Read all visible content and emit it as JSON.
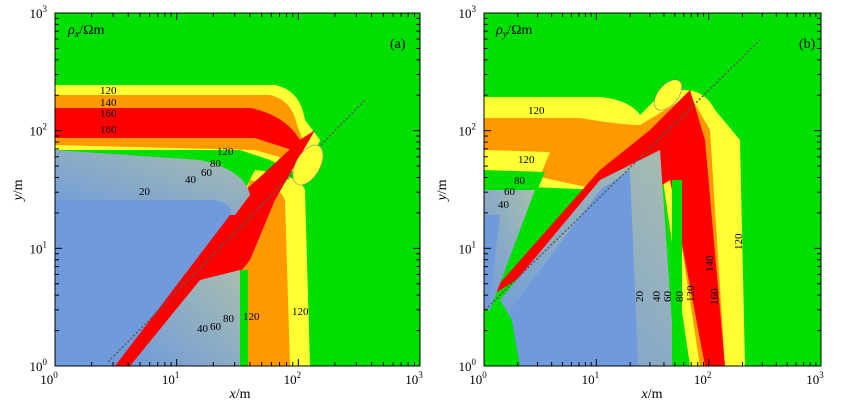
{
  "chart_data": [
    {
      "type": "heatmap",
      "panel_tag": "(a)",
      "field_label": {
        "sym": "ρ",
        "sub": "x",
        "unit": "/Ωm"
      },
      "xlabel": {
        "var": "x",
        "unit": "/m"
      },
      "ylabel": {
        "var": "y",
        "unit": "/m"
      },
      "x_scale": "log",
      "y_scale": "log",
      "xlim": [
        1,
        1000
      ],
      "ylim": [
        1,
        1000
      ],
      "x_ticks": [
        {
          "base": "10",
          "exp": "0"
        },
        {
          "base": "10",
          "exp": "1"
        },
        {
          "base": "10",
          "exp": "2"
        },
        {
          "base": "10",
          "exp": "3"
        }
      ],
      "y_ticks": [
        {
          "base": "10",
          "exp": "0"
        },
        {
          "base": "10",
          "exp": "1"
        },
        {
          "base": "10",
          "exp": "2"
        },
        {
          "base": "10",
          "exp": "3"
        }
      ],
      "contour_levels": [
        20,
        40,
        60,
        80,
        120,
        140,
        160
      ],
      "contour_labels": [
        "120",
        "140",
        "160",
        "160",
        "120",
        "80",
        "60",
        "40",
        "20",
        "40",
        "60",
        "80",
        "120",
        "120"
      ],
      "colors": {
        "background": "#00e000",
        "low": "#6f9bdc",
        "mid": "#9fb8b8",
        "yellow": "#ffff33",
        "orange": "#ff9900",
        "red": "#ff0000"
      }
    },
    {
      "type": "heatmap",
      "panel_tag": "(b)",
      "field_label": {
        "sym": "ρ",
        "sub": "y",
        "unit": "/Ωm"
      },
      "xlabel": {
        "var": "x",
        "unit": "/m"
      },
      "ylabel": {
        "var": "y",
        "unit": "/m"
      },
      "x_scale": "log",
      "y_scale": "log",
      "xlim": [
        1,
        1000
      ],
      "ylim": [
        1,
        1000
      ],
      "x_ticks": [
        {
          "base": "10",
          "exp": "0"
        },
        {
          "base": "10",
          "exp": "1"
        },
        {
          "base": "10",
          "exp": "2"
        },
        {
          "base": "10",
          "exp": "3"
        }
      ],
      "y_ticks": [
        {
          "base": "10",
          "exp": "0"
        },
        {
          "base": "10",
          "exp": "1"
        },
        {
          "base": "10",
          "exp": "2"
        },
        {
          "base": "10",
          "exp": "3"
        }
      ],
      "contour_levels": [
        20,
        40,
        60,
        80,
        120,
        140,
        160
      ],
      "contour_labels": [
        "120",
        "120",
        "80",
        "60",
        "40",
        "20",
        "40",
        "60",
        "80",
        "120",
        "140",
        "160",
        "120"
      ],
      "colors": {
        "background": "#00e000",
        "low": "#6f9bdc",
        "mid": "#9fb8b8",
        "yellow": "#ffff33",
        "orange": "#ff9900",
        "red": "#ff0000"
      }
    }
  ]
}
